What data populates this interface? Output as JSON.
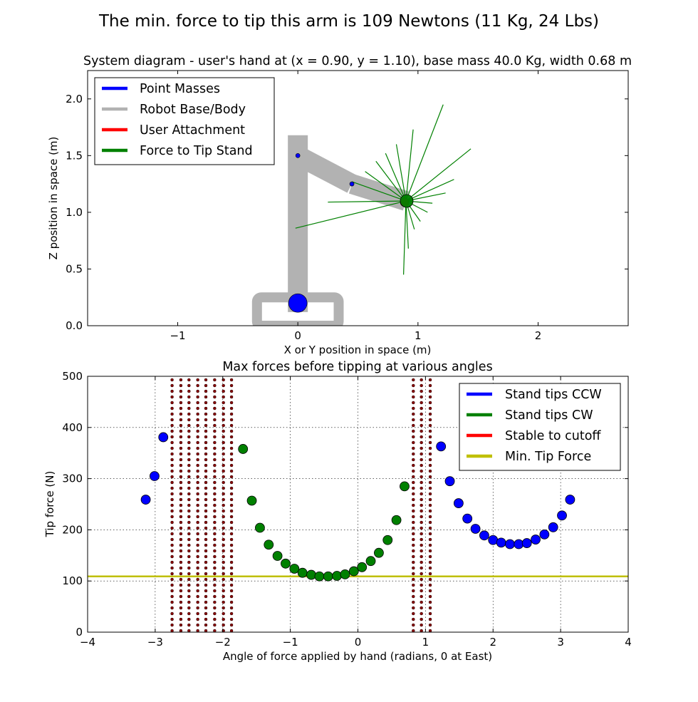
{
  "figure_title": "The min. force to tip this arm is 109 Newtons (11 Kg, 24 Lbs)",
  "chart_data": [
    {
      "type": "diagram",
      "title": "System diagram - user's hand at (x = 0.90, y = 1.10), base mass 40.0 Kg, width 0.68 m",
      "xlabel": "X or Y position in space (m)",
      "ylabel": "Z position in space (m)",
      "xlim": [
        -1.75,
        2.75
      ],
      "ylim": [
        0,
        2.25
      ],
      "xticks": [
        -1,
        0,
        1,
        2
      ],
      "xtick_labels": [
        "−1",
        "0",
        "1",
        "2"
      ],
      "yticks": [
        0,
        0.5,
        1.0,
        1.5,
        2.0
      ],
      "ytick_labels": [
        "0.0",
        "0.5",
        "1.0",
        "1.5",
        "2.0"
      ],
      "grid": false,
      "legend_position": "top-left",
      "legend": [
        {
          "label": "Point Masses",
          "color": "#0000ff"
        },
        {
          "label": "Robot Base/Body",
          "color": "#b2b2b2"
        },
        {
          "label": "User Attachment",
          "color": "#ff0000"
        },
        {
          "label": "Force to Tip Stand",
          "color": "#008000"
        }
      ],
      "body_segments": [
        {
          "from": [
            0,
            0.12
          ],
          "to": [
            0,
            1.68
          ]
        },
        {
          "from": [
            0,
            1.5
          ],
          "to": [
            0.45,
            1.25
          ]
        },
        {
          "from": [
            0.45,
            1.25
          ],
          "to": [
            0.9,
            1.1
          ]
        }
      ],
      "base_frame": {
        "x_min": -0.34,
        "x_max": 0.34,
        "y_min": 0,
        "y_max": 0.25
      },
      "point_masses": [
        {
          "x": 0,
          "y": 0.2,
          "size": "large"
        },
        {
          "x": 0,
          "y": 1.5,
          "size": "small"
        },
        {
          "x": 0.45,
          "y": 1.25,
          "size": "small"
        }
      ],
      "user_attachment": {
        "x": 0.9,
        "y": 1.1
      },
      "hand_marker": {
        "x": 0.9,
        "y": 1.1
      },
      "force_vector_tips": [
        [
          1.44,
          1.56
        ],
        [
          1.3,
          1.29
        ],
        [
          1.23,
          1.17
        ],
        [
          1.12,
          1.08
        ],
        [
          1.08,
          1.0
        ],
        [
          1.02,
          0.92
        ],
        [
          0.97,
          0.85
        ],
        [
          0.92,
          0.68
        ],
        [
          0.88,
          0.45
        ],
        [
          -0.02,
          0.86
        ],
        [
          0.25,
          1.09
        ],
        [
          0.45,
          1.27
        ],
        [
          0.56,
          1.36
        ],
        [
          0.65,
          1.45
        ],
        [
          0.73,
          1.52
        ],
        [
          0.82,
          1.6
        ],
        [
          0.96,
          1.73
        ],
        [
          1.21,
          1.95
        ]
      ]
    },
    {
      "type": "scatter",
      "title": "Max forces before tipping at various angles",
      "xlabel": "Angle of force applied by hand (radians, 0 at East)",
      "ylabel": "Tip force (N)",
      "xlim": [
        -4,
        4
      ],
      "ylim": [
        0,
        500
      ],
      "xticks": [
        -4,
        -3,
        -2,
        -1,
        0,
        1,
        2,
        3,
        4
      ],
      "xtick_labels": [
        "−4",
        "−3",
        "−2",
        "−1",
        "0",
        "1",
        "2",
        "3",
        "4"
      ],
      "yticks": [
        0,
        100,
        200,
        300,
        400,
        500
      ],
      "ytick_labels": [
        "0",
        "100",
        "200",
        "300",
        "400",
        "500"
      ],
      "grid": true,
      "legend_position": "top-right",
      "series": [
        {
          "name": "Stand tips CCW",
          "color": "#0000ff",
          "x": [
            -3.14,
            -3.01,
            -2.88,
            1.23,
            1.36,
            1.49,
            1.62,
            1.74,
            1.87,
            2.0,
            2.12,
            2.25,
            2.38,
            2.5,
            2.63,
            2.76,
            2.89,
            3.02,
            3.14
          ],
          "y": [
            259,
            305,
            381,
            363,
            295,
            252,
            222,
            202,
            189,
            180,
            175,
            172,
            172,
            174,
            181,
            191,
            205,
            228,
            259
          ]
        },
        {
          "name": "Stand tips CW",
          "color": "#008000",
          "x": [
            -1.7,
            -1.57,
            -1.45,
            -1.32,
            -1.19,
            -1.07,
            -0.94,
            -0.82,
            -0.69,
            -0.57,
            -0.44,
            -0.31,
            -0.19,
            -0.06,
            0.06,
            0.19,
            0.31,
            0.44,
            0.57,
            0.69
          ],
          "y": [
            358,
            257,
            204,
            171,
            149,
            134,
            124,
            116,
            112,
            109,
            109,
            110,
            113,
            119,
            127,
            139,
            155,
            180,
            219,
            285
          ]
        },
        {
          "name": "Stable to cutoff",
          "color": "#ff0000",
          "x": [
            -2.75,
            -2.62,
            -2.5,
            -2.37,
            -2.25,
            -2.12,
            -1.99,
            -1.87,
            0.82,
            0.94,
            1.07
          ],
          "y_range": [
            0,
            500
          ]
        },
        {
          "name": "Min. Tip Force",
          "color": "#bfbf00",
          "y": 109
        }
      ]
    }
  ]
}
